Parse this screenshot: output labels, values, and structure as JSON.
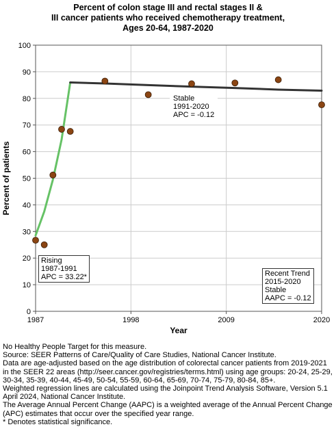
{
  "title_lines": [
    "Percent of colon stage III and rectal stages II &",
    "III cancer patients who received chemotherapy treatment,",
    "Ages 20-64,  1987-2020"
  ],
  "chart_data": {
    "type": "scatter",
    "xlabel": "Year",
    "ylabel": "Percent of patients",
    "xlim": [
      1987,
      2020
    ],
    "ylim": [
      0,
      100
    ],
    "x_ticks": [
      "1987",
      "1998",
      "2009",
      "2020"
    ],
    "y_ticks": [
      "0",
      "10",
      "20",
      "30",
      "40",
      "50",
      "60",
      "70",
      "80",
      "90",
      "100"
    ],
    "grid": true,
    "colors": {
      "points": "#8B4513",
      "segment1": "#66c266",
      "segment2": "#333333",
      "grid": "#cccccc"
    },
    "points": [
      {
        "x": 1987.0,
        "y": 26.7
      },
      {
        "x": 1988.0,
        "y": 25.0
      },
      {
        "x": 1989.0,
        "y": 51.2
      },
      {
        "x": 1990.0,
        "y": 68.4
      },
      {
        "x": 1991.0,
        "y": 67.6
      },
      {
        "x": 1995.0,
        "y": 86.5
      },
      {
        "x": 2000.0,
        "y": 81.4
      },
      {
        "x": 2005.0,
        "y": 85.5
      },
      {
        "x": 2010.0,
        "y": 85.8
      },
      {
        "x": 2015.0,
        "y": 87.0
      },
      {
        "x": 2020.0,
        "y": 77.6
      }
    ],
    "trend_segments": [
      {
        "points": [
          [
            1987,
            28.5
          ],
          [
            1988,
            37.5
          ],
          [
            1989,
            49.5
          ],
          [
            1990,
            64.5
          ],
          [
            1991,
            86.0
          ]
        ]
      },
      {
        "points": [
          [
            1991,
            86.0
          ],
          [
            1995,
            85.6
          ],
          [
            2000,
            85.0
          ],
          [
            2005,
            84.4
          ],
          [
            2010,
            83.9
          ],
          [
            2015,
            83.3
          ],
          [
            2020,
            82.9
          ]
        ]
      }
    ],
    "annotations": [
      {
        "id": "rising",
        "lines": [
          "Rising",
          "1987-1991",
          "APC = 33.22*"
        ]
      },
      {
        "id": "stable",
        "lines": [
          "Stable",
          "1991-2020",
          "APC = -0.12"
        ]
      },
      {
        "id": "recent",
        "lines": [
          "Recent Trend",
          "2015-2020",
          "Stable",
          "AAPC = -0.12"
        ]
      }
    ]
  },
  "notes": [
    "No Healthy People Target for this measure.",
    "Source: SEER Patterns of Care/Quality of Care Studies, National Cancer Institute.",
    "Data are age-adjusted based on the age distribution of colorectal cancer patients from 2019-2021 in the SEER 22 areas (http://seer.cancer.gov/registries/terms.html) using age groups: 20-24, 25-29, 30-34, 35-39, 40-44, 45-49, 50-54, 55-59, 60-64, 65-69, 70-74, 75-79, 80-84, 85+.",
    "Weighted regression lines are calculated using the Joinpoint Trend Analysis Software, Version 5.1 April 2024, National Cancer Institute.",
    "The Average Annual Percent Change (AAPC) is a weighted average of the Annual Percent Change (APC) estimates that occur over the specified year range.",
    "* Denotes statistical significance."
  ]
}
